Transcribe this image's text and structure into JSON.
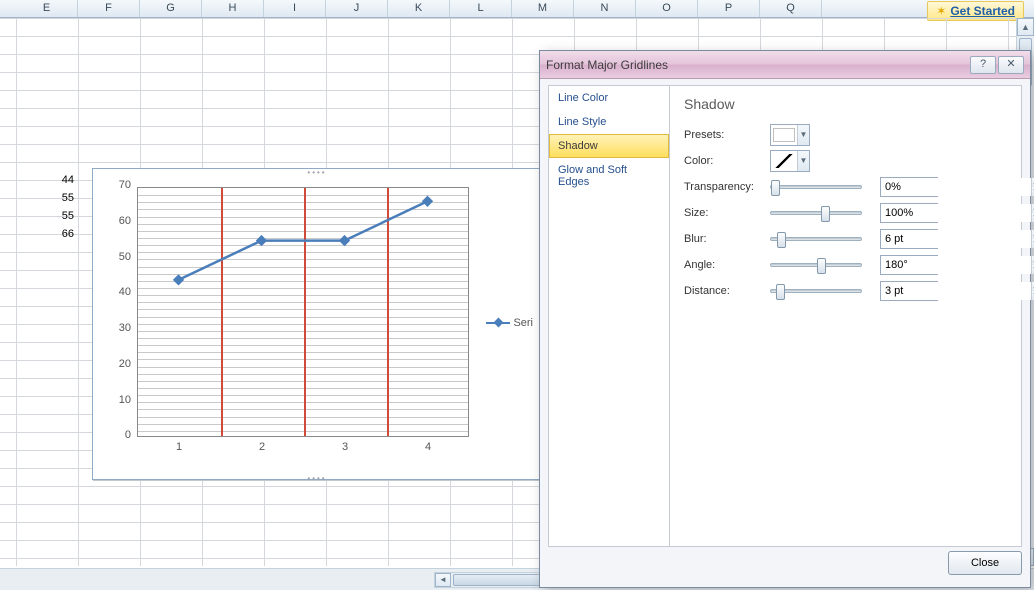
{
  "columns": [
    "E",
    "F",
    "G",
    "H",
    "I",
    "J",
    "K",
    "L",
    "M",
    "N",
    "O",
    "P",
    "Q"
  ],
  "getStarted": "Get Started",
  "cells": {
    "c0": "44",
    "c1": "55",
    "c2": "55",
    "c3": "66"
  },
  "chart": {
    "type": "line",
    "x_categories": [
      "1",
      "2",
      "3",
      "4"
    ],
    "y_ticks": [
      "0",
      "10",
      "20",
      "30",
      "40",
      "50",
      "60",
      "70"
    ],
    "ylim": [
      0,
      70
    ],
    "values": [
      44,
      55,
      55,
      66
    ],
    "series_name": "Seri",
    "line_color": "#4a7ebb",
    "line_width": 2.5,
    "marker": "diamond",
    "marker_size": 7,
    "major_gridline_color": "#d04a3a",
    "minor_gridline_color": "#c9c9c9",
    "plot_border_color": "#888888",
    "background_color": "#ffffff",
    "chart_border_color": "#8faac4",
    "label_color": "#555555",
    "label_fontsize": 11,
    "minor_grid_count": 35
  },
  "dialog": {
    "title": "Format Major Gridlines",
    "nav": {
      "i0": "Line Color",
      "i1": "Line Style",
      "i2": "Shadow",
      "i3": "Glow and Soft Edges"
    },
    "panel": {
      "heading": "Shadow",
      "presets_label": "Presets:",
      "color_label": "Color:",
      "rows": {
        "transparency": {
          "label": "Transparency:",
          "value": "0%",
          "slider_pos": 0
        },
        "size": {
          "label": "Size:",
          "value": "100%",
          "slider_pos": 50
        },
        "blur": {
          "label": "Blur:",
          "value": "6 pt",
          "slider_pos": 6
        },
        "angle": {
          "label": "Angle:",
          "value": "180°",
          "slider_pos": 46
        },
        "distance": {
          "label": "Distance:",
          "value": "3 pt",
          "slider_pos": 5
        }
      }
    },
    "close": "Close",
    "help_glyph": "?",
    "x_glyph": "✕"
  },
  "colors": {
    "titlebar_gradient": [
      "#f1ddea",
      "#e4c4da",
      "#d9b0cd",
      "#e9cde0"
    ],
    "nav_selected_gradient": [
      "#fff2b8",
      "#ffdf5e"
    ],
    "nav_link_color": "#264f8e",
    "dialog_bg": "#f3f5f8",
    "colhdr_gradient": [
      "#f4f8fb",
      "#dfe9f2"
    ],
    "grid_line": "#d4d8dc",
    "getstarted_gradient": [
      "#fff8d8",
      "#ffe88a"
    ]
  }
}
